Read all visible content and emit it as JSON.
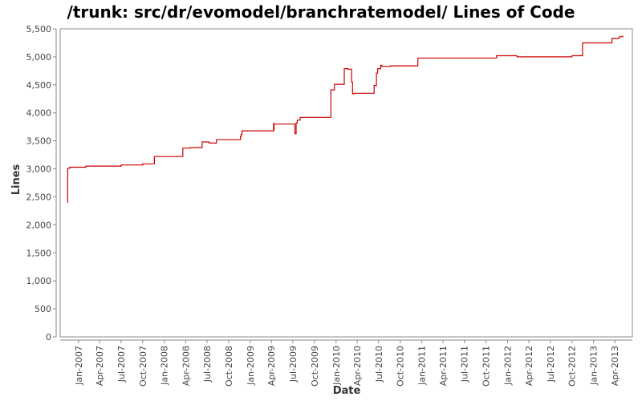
{
  "chart_data": {
    "type": "line",
    "title": "/trunk: src/dr/evomodel/branchratemodel/ Lines of Code",
    "xlabel": "Date",
    "ylabel": "Lines",
    "ylim": [
      0,
      5500
    ],
    "y_ticks": [
      0,
      500,
      1000,
      1500,
      2000,
      2500,
      3000,
      3500,
      4000,
      4500,
      5000,
      5500
    ],
    "y_tick_labels": [
      "0",
      "500",
      "1,000",
      "1,500",
      "2,000",
      "2,500",
      "3,000",
      "3,500",
      "4,000",
      "4,500",
      "5,000",
      "5,500"
    ],
    "x_range": [
      "2006-10-15",
      "2013-06-15"
    ],
    "x_ticks": [
      "2007-01-01",
      "2007-04-01",
      "2007-07-01",
      "2007-10-01",
      "2008-01-01",
      "2008-04-01",
      "2008-07-01",
      "2008-10-01",
      "2009-01-01",
      "2009-04-01",
      "2009-07-01",
      "2009-10-01",
      "2010-01-01",
      "2010-04-01",
      "2010-07-01",
      "2010-10-01",
      "2011-01-01",
      "2011-04-01",
      "2011-07-01",
      "2011-10-01",
      "2012-01-01",
      "2012-04-01",
      "2012-07-01",
      "2012-10-01",
      "2013-01-01",
      "2013-04-01"
    ],
    "x_tick_labels": [
      "Jan-2007",
      "Apr-2007",
      "Jul-2007",
      "Oct-2007",
      "Jan-2008",
      "Apr-2008",
      "Jul-2008",
      "Oct-2008",
      "Jan-2009",
      "Apr-2009",
      "Jul-2009",
      "Oct-2009",
      "Jan-2010",
      "Apr-2010",
      "Jul-2010",
      "Oct-2010",
      "Jan-2011",
      "Apr-2011",
      "Jul-2011",
      "Oct-2011",
      "Jan-2012",
      "Apr-2012",
      "Jul-2012",
      "Oct-2012",
      "Jan-2013",
      "Apr-2013"
    ],
    "grid": false,
    "step": true,
    "series": [
      {
        "color": "#cc0000",
        "points": [
          [
            "2006-11-15",
            2400
          ],
          [
            "2006-11-16",
            3010
          ],
          [
            "2006-11-25",
            3030
          ],
          [
            "2007-02-01",
            3050
          ],
          [
            "2007-07-01",
            3060
          ],
          [
            "2007-07-03",
            3070
          ],
          [
            "2007-10-01",
            3090
          ],
          [
            "2007-11-20",
            3220
          ],
          [
            "2008-03-20",
            3370
          ],
          [
            "2008-04-20",
            3380
          ],
          [
            "2008-06-10",
            3480
          ],
          [
            "2008-07-10",
            3460
          ],
          [
            "2008-08-10",
            3520
          ],
          [
            "2008-11-20",
            3580
          ],
          [
            "2008-11-23",
            3620
          ],
          [
            "2008-11-27",
            3680
          ],
          [
            "2009-04-10",
            3810
          ],
          [
            "2009-04-11",
            3690
          ],
          [
            "2009-04-12",
            3800
          ],
          [
            "2009-07-10",
            3630
          ],
          [
            "2009-07-15",
            3820
          ],
          [
            "2009-07-20",
            3870
          ],
          [
            "2009-08-01",
            3920
          ],
          [
            "2009-12-10",
            4410
          ],
          [
            "2009-12-25",
            4510
          ],
          [
            "2010-02-05",
            4790
          ],
          [
            "2010-02-20",
            4780
          ],
          [
            "2010-03-08",
            4550
          ],
          [
            "2010-03-12",
            4340
          ],
          [
            "2010-03-18",
            4350
          ],
          [
            "2010-06-12",
            4490
          ],
          [
            "2010-06-22",
            4710
          ],
          [
            "2010-06-27",
            4790
          ],
          [
            "2010-07-10",
            4850
          ],
          [
            "2010-07-15",
            4830
          ],
          [
            "2010-08-20",
            4840
          ],
          [
            "2010-12-15",
            4980
          ],
          [
            "2011-11-15",
            5020
          ],
          [
            "2012-02-10",
            5000
          ],
          [
            "2012-10-01",
            5020
          ],
          [
            "2012-11-15",
            5250
          ],
          [
            "2013-03-20",
            5330
          ],
          [
            "2013-04-20",
            5360
          ],
          [
            "2013-05-05",
            5380
          ]
        ]
      }
    ]
  }
}
